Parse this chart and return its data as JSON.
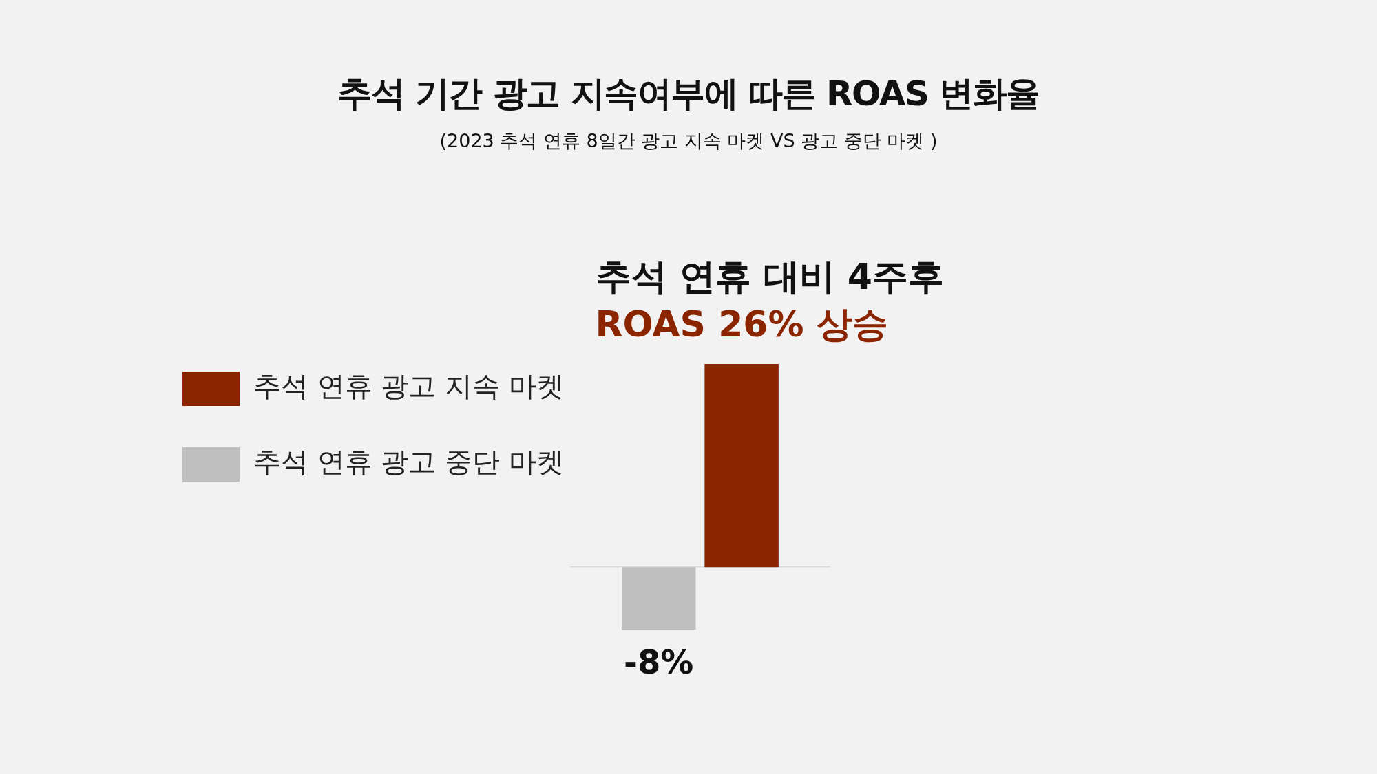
{
  "chart_data": {
    "type": "bar",
    "title": "추석 기간 광고 지속여부에 따른 ROAS 변화율",
    "subtitle": "(2023 추석 연휴 8일간 광고 지속 마켓 VS 광고 중단 마켓 )",
    "categories": [
      null
    ],
    "series": [
      {
        "name": "추석 연휴 광고 중단 마켓",
        "color": "#bfbfbf",
        "values": [
          -8
        ],
        "value_labels": [
          "-8%"
        ]
      },
      {
        "name": "추석 연휴 광고 지속 마켓",
        "color": "#8b2500",
        "values": [
          26
        ],
        "value_labels": [
          "ROAS 26% 상승"
        ]
      }
    ],
    "annotations": [
      "추석 연휴 대비 4주후"
    ],
    "legend": "left",
    "grid": false
  }
}
